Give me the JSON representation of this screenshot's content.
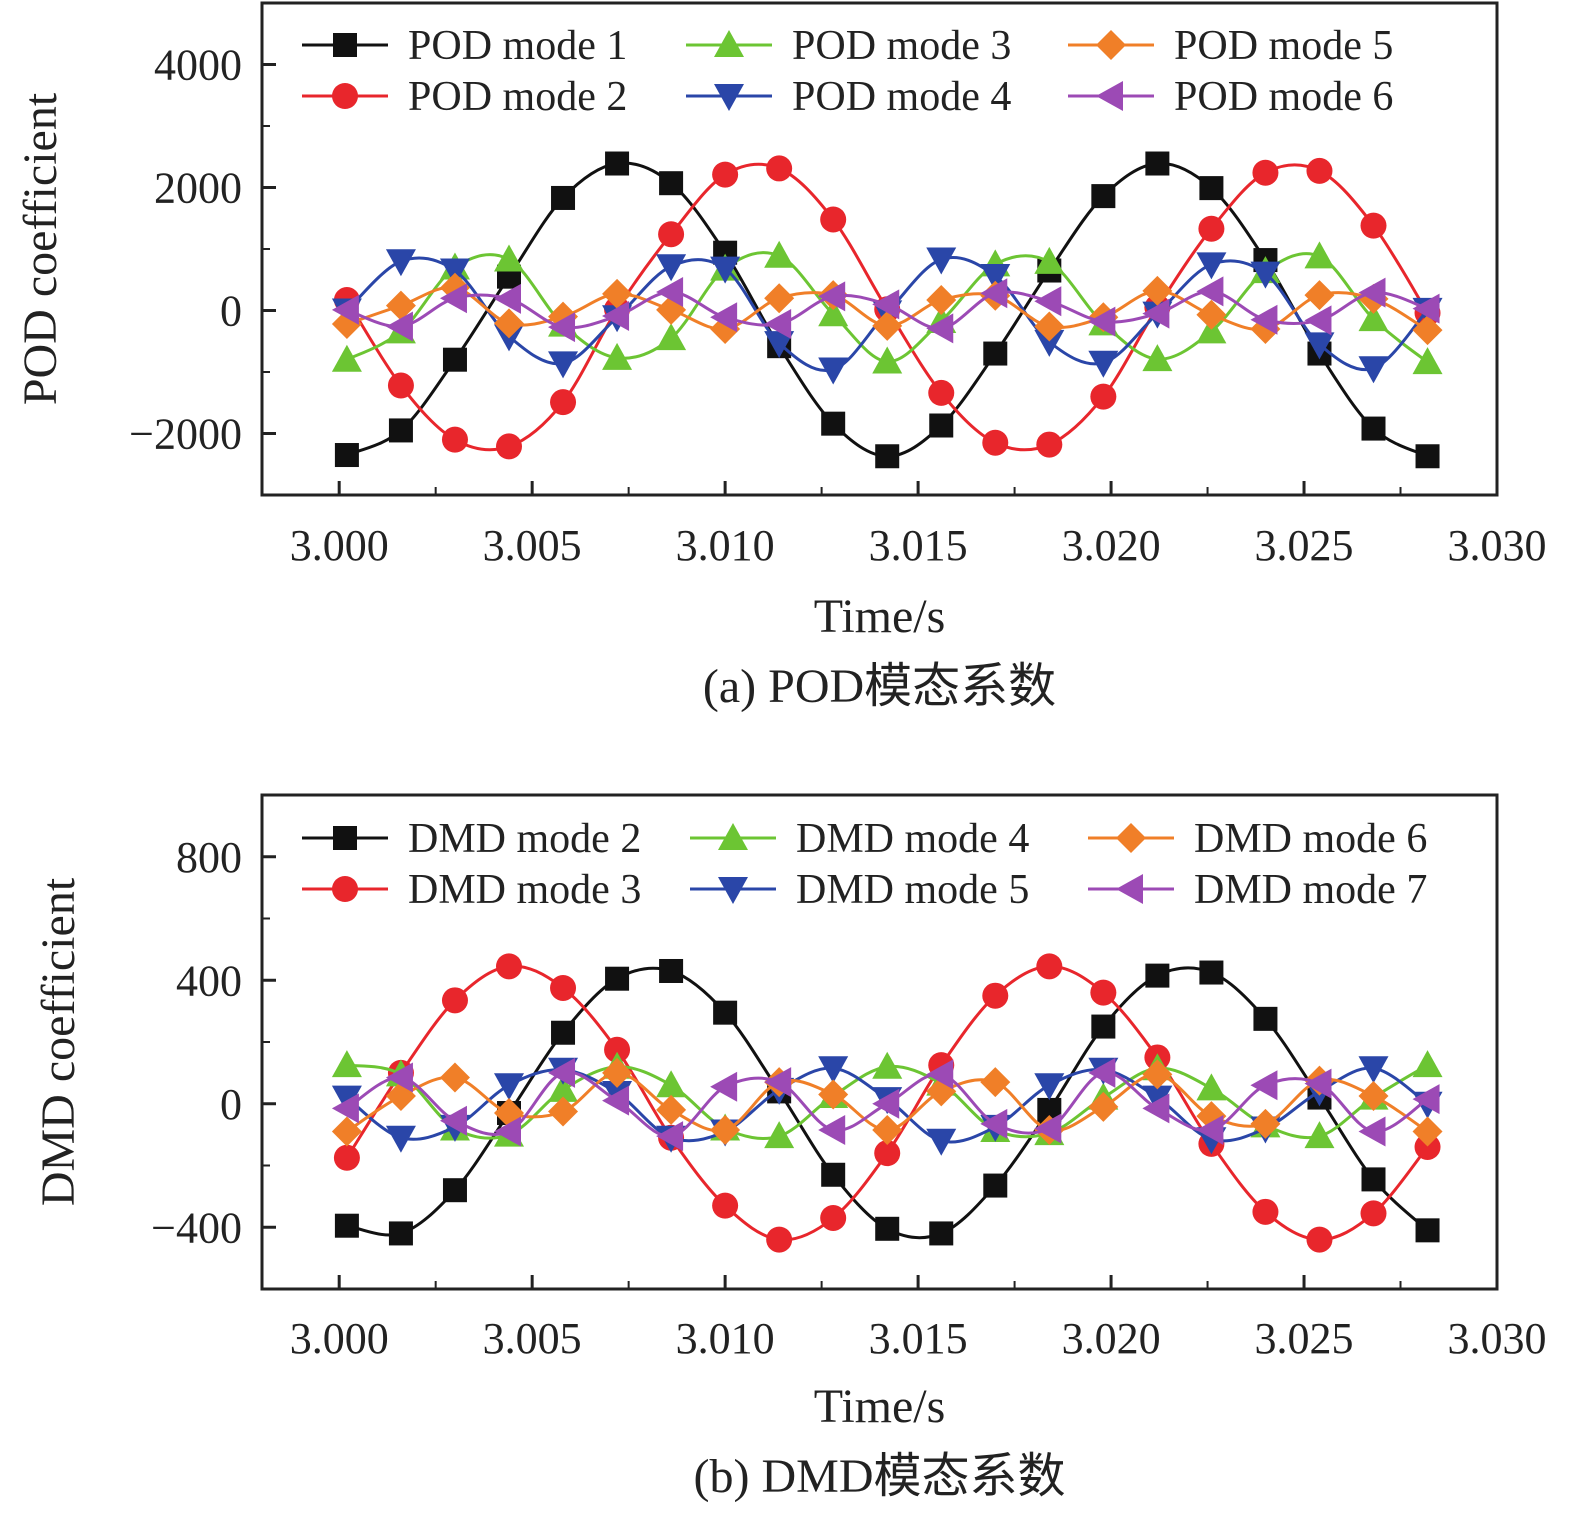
{
  "colors": {
    "black": "#111111",
    "red": "#e8262c",
    "green": "#6cc533",
    "blue": "#2a46a8",
    "orange": "#f07f28",
    "purple": "#9c4ab5"
  },
  "chart_data": [
    {
      "type": "line",
      "caption": "(a) POD模态系数",
      "xlabel": "Time/s",
      "ylabel": "POD coefficient",
      "xlim": [
        2.998,
        3.03
      ],
      "ylim": [
        -3000,
        5000
      ],
      "xticks": [
        "3.000",
        "3.005",
        "3.010",
        "3.015",
        "3.020",
        "3.025",
        "3.030"
      ],
      "yticks": [
        "4000",
        "2000",
        "0",
        "−2000"
      ],
      "legend_position": "top",
      "x": [
        3.0002,
        3.0016,
        3.003,
        3.0044,
        3.0058,
        3.0072,
        3.0086,
        3.01,
        3.0114,
        3.0128,
        3.0142,
        3.0156,
        3.017,
        3.0184,
        3.0198,
        3.0212,
        3.0226,
        3.024,
        3.0254,
        3.0268,
        3.0282
      ],
      "series": [
        {
          "name": "POD mode 1",
          "color": "#111111",
          "marker": "square",
          "values": [
            -2350,
            -1950,
            -800,
            550,
            1830,
            2390,
            2070,
            940,
            -580,
            -1840,
            -2370,
            -1870,
            -700,
            650,
            1860,
            2390,
            1990,
            820,
            -700,
            -1920,
            -2370
          ]
        },
        {
          "name": "POD mode 2",
          "color": "#e8262c",
          "marker": "circle",
          "values": [
            170,
            -1220,
            -2100,
            -2210,
            -1490,
            20,
            1240,
            2210,
            2310,
            1480,
            20,
            -1340,
            -2150,
            -2180,
            -1400,
            50,
            1330,
            2240,
            2270,
            1380,
            -40
          ]
        },
        {
          "name": "POD mode 3",
          "color": "#6cc533",
          "marker": "triangle-up",
          "values": [
            -800,
            -340,
            700,
            830,
            -230,
            -770,
            -450,
            680,
            890,
            -60,
            -830,
            -170,
            750,
            790,
            -210,
            -790,
            -340,
            640,
            880,
            -140,
            -840
          ]
        },
        {
          "name": "POD mode 4",
          "color": "#2a46a8",
          "marker": "triangle-down",
          "values": [
            0,
            800,
            650,
            -420,
            -860,
            -110,
            720,
            680,
            -530,
            -960,
            -30,
            830,
            560,
            -510,
            -850,
            -50,
            750,
            600,
            -550,
            -940,
            10
          ]
        },
        {
          "name": "POD mode 5",
          "color": "#f07f28",
          "marker": "diamond",
          "values": [
            -220,
            80,
            370,
            -210,
            -100,
            270,
            10,
            -300,
            200,
            250,
            -250,
            170,
            240,
            -260,
            -110,
            320,
            -70,
            -300,
            250,
            190,
            -320
          ]
        },
        {
          "name": "POD mode 6",
          "color": "#9c4ab5",
          "marker": "triangle-left",
          "values": [
            10,
            -260,
            200,
            190,
            -270,
            -90,
            300,
            -110,
            -220,
            230,
            100,
            -290,
            280,
            150,
            -180,
            -50,
            310,
            -150,
            -160,
            290,
            30
          ]
        }
      ]
    },
    {
      "type": "line",
      "caption": "(b) DMD模态系数",
      "xlabel": "Time/s",
      "ylabel": "DMD coefficient",
      "xlim": [
        2.998,
        3.03
      ],
      "ylim": [
        -600,
        1000
      ],
      "xticks": [
        "3.000",
        "3.005",
        "3.010",
        "3.015",
        "3.020",
        "3.025",
        "3.030"
      ],
      "yticks": [
        "800",
        "400",
        "0",
        "−400"
      ],
      "legend_position": "top",
      "x": [
        3.0002,
        3.0016,
        3.003,
        3.0044,
        3.0058,
        3.0072,
        3.0086,
        3.01,
        3.0114,
        3.0128,
        3.0142,
        3.0156,
        3.017,
        3.0184,
        3.0198,
        3.0212,
        3.0226,
        3.024,
        3.0254,
        3.0268,
        3.0282
      ],
      "series": [
        {
          "name": "DMD mode 2",
          "color": "#111111",
          "marker": "square",
          "values": [
            -395,
            -420,
            -280,
            -30,
            230,
            405,
            430,
            295,
            40,
            -230,
            -405,
            -420,
            -265,
            -20,
            250,
            415,
            425,
            275,
            20,
            -245,
            -410
          ]
        },
        {
          "name": "DMD mode 3",
          "color": "#e8262c",
          "marker": "circle",
          "values": [
            -175,
            100,
            335,
            445,
            375,
            175,
            -110,
            -330,
            -440,
            -370,
            -160,
            125,
            350,
            445,
            360,
            150,
            -130,
            -350,
            -440,
            -355,
            -140
          ]
        },
        {
          "name": "DMD mode 4",
          "color": "#6cc533",
          "marker": "triangle-up",
          "values": [
            125,
            95,
            -80,
            -100,
            45,
            120,
            60,
            -80,
            -105,
            25,
            120,
            65,
            -85,
            -95,
            20,
            115,
            50,
            -70,
            -105,
            20,
            125
          ]
        },
        {
          "name": "DMD mode 5",
          "color": "#2a46a8",
          "marker": "triangle-down",
          "values": [
            20,
            -110,
            -75,
            60,
            110,
            35,
            -110,
            -90,
            45,
            115,
            15,
            -120,
            -75,
            60,
            110,
            20,
            -115,
            -80,
            40,
            115,
            0
          ]
        },
        {
          "name": "DMD mode 6",
          "color": "#f07f28",
          "marker": "diamond",
          "values": [
            -90,
            25,
            85,
            -30,
            -25,
            100,
            -20,
            -85,
            70,
            30,
            -85,
            40,
            70,
            -85,
            -10,
            95,
            -40,
            -65,
            75,
            25,
            -90
          ]
        },
        {
          "name": "DMD mode 7",
          "color": "#9c4ab5",
          "marker": "triangle-left",
          "values": [
            -15,
            85,
            -55,
            -90,
            100,
            10,
            -105,
            55,
            70,
            -85,
            0,
            95,
            -65,
            -80,
            100,
            -15,
            -85,
            60,
            65,
            -90,
            15
          ]
        }
      ]
    }
  ]
}
